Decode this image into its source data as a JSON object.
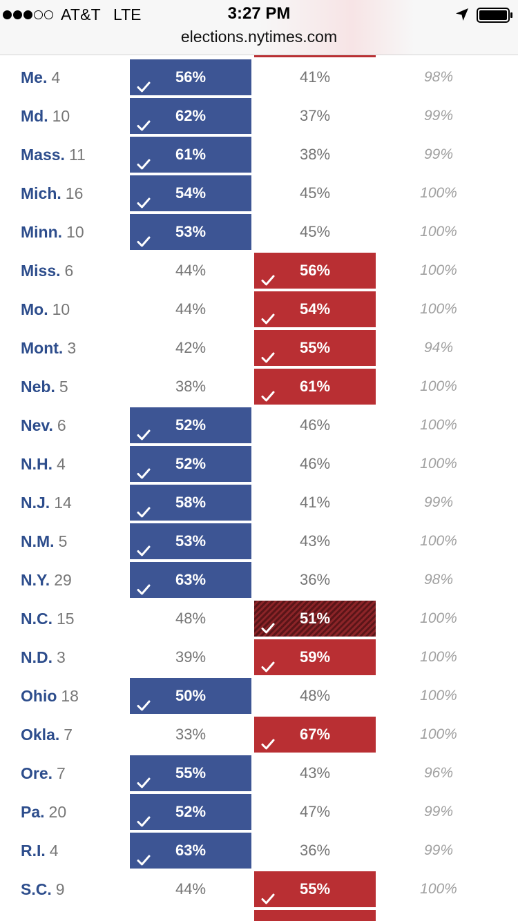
{
  "status_bar": {
    "signal_dots": [
      "full",
      "full",
      "full",
      "empty",
      "empty"
    ],
    "carrier": "AT&T",
    "network": "LTE",
    "time": "3:27 PM",
    "url": "elections.nytimes.com",
    "icons": [
      "location-arrow-icon",
      "battery-icon"
    ]
  },
  "colors": {
    "dem_blue": "#3d5594",
    "rep_red": "#b92f33",
    "flip_red": "#7a1f22",
    "state_name_blue": "#2d4d8c"
  },
  "rows": [
    {
      "state": "Me.",
      "votes": "4",
      "dem": "56%",
      "rep": "41%",
      "reporting": "98%",
      "winner": "dem"
    },
    {
      "state": "Md.",
      "votes": "10",
      "dem": "62%",
      "rep": "37%",
      "reporting": "99%",
      "winner": "dem"
    },
    {
      "state": "Mass.",
      "votes": "11",
      "dem": "61%",
      "rep": "38%",
      "reporting": "99%",
      "winner": "dem"
    },
    {
      "state": "Mich.",
      "votes": "16",
      "dem": "54%",
      "rep": "45%",
      "reporting": "100%",
      "winner": "dem"
    },
    {
      "state": "Minn.",
      "votes": "10",
      "dem": "53%",
      "rep": "45%",
      "reporting": "100%",
      "winner": "dem"
    },
    {
      "state": "Miss.",
      "votes": "6",
      "dem": "44%",
      "rep": "56%",
      "reporting": "100%",
      "winner": "rep"
    },
    {
      "state": "Mo.",
      "votes": "10",
      "dem": "44%",
      "rep": "54%",
      "reporting": "100%",
      "winner": "rep"
    },
    {
      "state": "Mont.",
      "votes": "3",
      "dem": "42%",
      "rep": "55%",
      "reporting": "94%",
      "winner": "rep"
    },
    {
      "state": "Neb.",
      "votes": "5",
      "dem": "38%",
      "rep": "61%",
      "reporting": "100%",
      "winner": "rep"
    },
    {
      "state": "Nev.",
      "votes": "6",
      "dem": "52%",
      "rep": "46%",
      "reporting": "100%",
      "winner": "dem"
    },
    {
      "state": "N.H.",
      "votes": "4",
      "dem": "52%",
      "rep": "46%",
      "reporting": "100%",
      "winner": "dem"
    },
    {
      "state": "N.J.",
      "votes": "14",
      "dem": "58%",
      "rep": "41%",
      "reporting": "99%",
      "winner": "dem"
    },
    {
      "state": "N.M.",
      "votes": "5",
      "dem": "53%",
      "rep": "43%",
      "reporting": "100%",
      "winner": "dem"
    },
    {
      "state": "N.Y.",
      "votes": "29",
      "dem": "63%",
      "rep": "36%",
      "reporting": "98%",
      "winner": "dem"
    },
    {
      "state": "N.C.",
      "votes": "15",
      "dem": "48%",
      "rep": "51%",
      "reporting": "100%",
      "winner": "rep",
      "flip": true
    },
    {
      "state": "N.D.",
      "votes": "3",
      "dem": "39%",
      "rep": "59%",
      "reporting": "100%",
      "winner": "rep"
    },
    {
      "state": "Ohio",
      "votes": "18",
      "dem": "50%",
      "rep": "48%",
      "reporting": "100%",
      "winner": "dem"
    },
    {
      "state": "Okla.",
      "votes": "7",
      "dem": "33%",
      "rep": "67%",
      "reporting": "100%",
      "winner": "rep"
    },
    {
      "state": "Ore.",
      "votes": "7",
      "dem": "55%",
      "rep": "43%",
      "reporting": "96%",
      "winner": "dem"
    },
    {
      "state": "Pa.",
      "votes": "20",
      "dem": "52%",
      "rep": "47%",
      "reporting": "99%",
      "winner": "dem"
    },
    {
      "state": "R.I.",
      "votes": "4",
      "dem": "63%",
      "rep": "36%",
      "reporting": "99%",
      "winner": "dem"
    },
    {
      "state": "S.C.",
      "votes": "9",
      "dem": "44%",
      "rep": "55%",
      "reporting": "100%",
      "winner": "rep"
    }
  ]
}
